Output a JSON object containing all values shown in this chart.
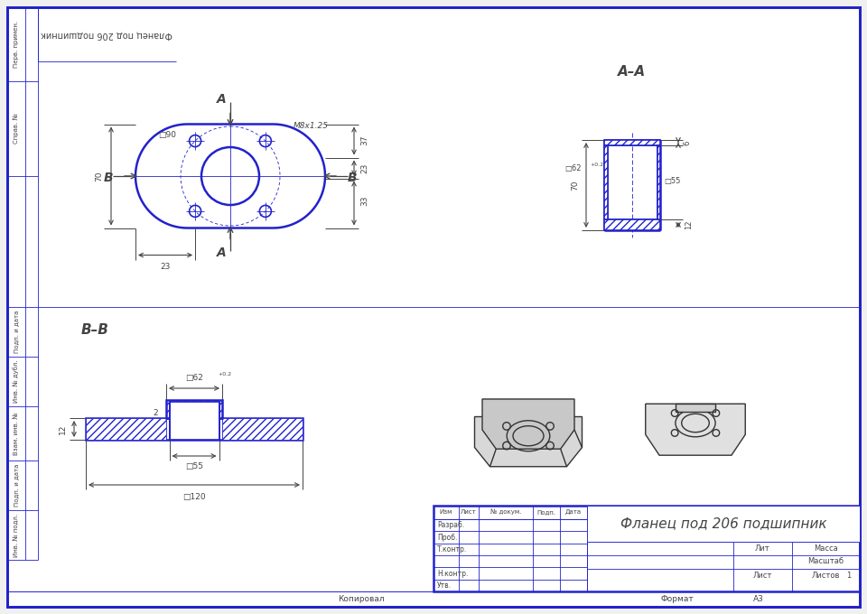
{
  "bg_color": "#ffffff",
  "paper_color": "#f0f0f0",
  "border_color": "#2222cc",
  "line_color": "#2222cc",
  "dim_color": "#444444",
  "title": "Фланец под 206 подшипник",
  "top_label": "Фланец под 206 подшипник",
  "section_aa": "А–А",
  "section_bb": "В–В",
  "sidebar_rows": [
    [
      8,
      90,
      "Перв. примен."
    ],
    [
      90,
      195,
      "Справ. №"
    ],
    [
      340,
      395,
      "Подп. и дата"
    ],
    [
      395,
      450,
      "Инв. № дубл."
    ],
    [
      450,
      510,
      "Взам. инв. №"
    ],
    [
      510,
      565,
      "Подп. и дата"
    ],
    [
      565,
      620,
      "Инв. № подл."
    ]
  ]
}
